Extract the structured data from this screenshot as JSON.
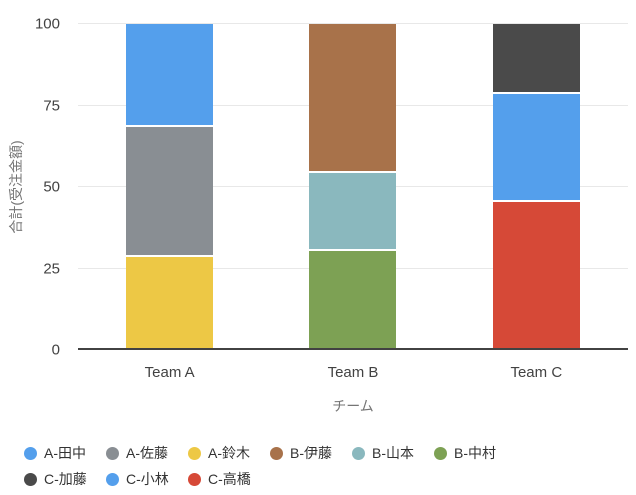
{
  "chart_data": {
    "type": "bar",
    "stacked": true,
    "stack_note": "first listed series renders as the top segment of its team's bar; each team's bar sums to 100",
    "categories": [
      "Team A",
      "Team B",
      "Team C"
    ],
    "series": [
      {
        "name": "A-田中",
        "color": "#549FEC",
        "values": [
          31,
          0,
          0
        ]
      },
      {
        "name": "A-佐藤",
        "color": "#898E93",
        "values": [
          40,
          0,
          0
        ]
      },
      {
        "name": "A-鈴木",
        "color": "#EDC845",
        "values": [
          29,
          0,
          0
        ]
      },
      {
        "name": "B-伊藤",
        "color": "#A8724A",
        "values": [
          0,
          45,
          0
        ]
      },
      {
        "name": "B-山本",
        "color": "#8AB8BE",
        "values": [
          0,
          24,
          0
        ]
      },
      {
        "name": "B-中村",
        "color": "#7DA154",
        "values": [
          0,
          31,
          0
        ]
      },
      {
        "name": "C-加藤",
        "color": "#4A4A4A",
        "values": [
          0,
          0,
          21
        ]
      },
      {
        "name": "C-小林",
        "color": "#549FEC",
        "values": [
          0,
          0,
          33
        ]
      },
      {
        "name": "C-高橋",
        "color": "#D64937",
        "values": [
          0,
          0,
          46
        ]
      }
    ],
    "title": "",
    "xlabel": "チーム",
    "ylabel": "合計(受注金額)",
    "yticks": [
      0,
      25,
      50,
      75,
      100
    ],
    "ylim": [
      0,
      100
    ],
    "grid": true,
    "legend_position": "bottom"
  }
}
